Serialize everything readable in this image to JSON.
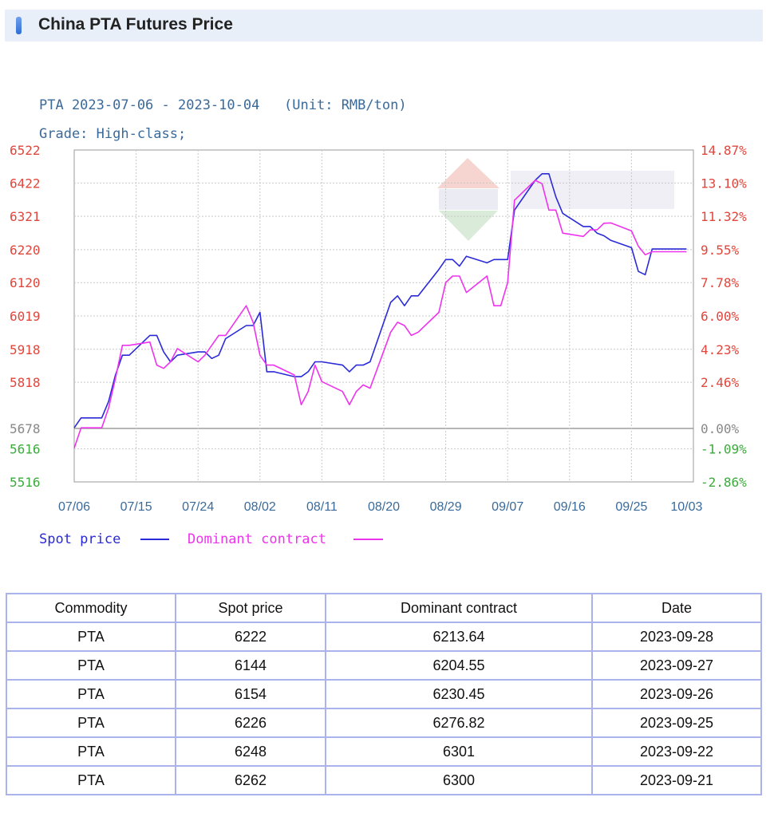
{
  "page": {
    "title": "China PTA Futures Price"
  },
  "colors": {
    "spot": "#2a2ad8",
    "dominant": "#ee33ee",
    "left_axis_upper": "#e0463c",
    "left_axis_lower": "#3cab3c",
    "right_axis_upper": "#e0463c",
    "right_axis_lower": "#3cab3c",
    "axis_text": "#3a6a9a"
  },
  "chart_data": {
    "type": "line",
    "title": "PTA 2023-07-06 - 2023-10-04   (Unit: RMB/ton)",
    "subtitle": "Grade: High-class;",
    "grid": true,
    "legend_position": "bottom-left",
    "x_ticks": [
      "07/06",
      "07/15",
      "07/24",
      "08/02",
      "08/11",
      "08/20",
      "08/29",
      "09/07",
      "09/16",
      "09/25",
      "10/03"
    ],
    "xlim": [
      "2023-07-06",
      "2023-10-04"
    ],
    "y_left_ticks": [
      "6522",
      "6422",
      "6321",
      "6220",
      "6120",
      "6019",
      "5918",
      "5818",
      "5678",
      "5616",
      "5516"
    ],
    "y_right_ticks": [
      "14.87%",
      "13.10%",
      "11.32%",
      "9.55%",
      "7.78%",
      "6.00%",
      "4.23%",
      "2.46%",
      "0.00%",
      "-1.09%",
      "-2.86%"
    ],
    "ylim": [
      5516,
      6522
    ],
    "baseline": 5678,
    "series": [
      {
        "name": "Spot price",
        "key": "spot",
        "x": [
          "2023-07-06",
          "2023-07-07",
          "2023-07-10",
          "2023-07-11",
          "2023-07-12",
          "2023-07-13",
          "2023-07-14",
          "2023-07-17",
          "2023-07-18",
          "2023-07-19",
          "2023-07-20",
          "2023-07-21",
          "2023-07-24",
          "2023-07-25",
          "2023-07-26",
          "2023-07-27",
          "2023-07-28",
          "2023-07-31",
          "2023-08-01",
          "2023-08-02",
          "2023-08-03",
          "2023-08-04",
          "2023-08-07",
          "2023-08-08",
          "2023-08-09",
          "2023-08-10",
          "2023-08-11",
          "2023-08-14",
          "2023-08-15",
          "2023-08-16",
          "2023-08-17",
          "2023-08-18",
          "2023-08-21",
          "2023-08-22",
          "2023-08-23",
          "2023-08-24",
          "2023-08-25",
          "2023-08-28",
          "2023-08-29",
          "2023-08-30",
          "2023-08-31",
          "2023-09-01",
          "2023-09-04",
          "2023-09-05",
          "2023-09-06",
          "2023-09-07",
          "2023-09-08",
          "2023-09-11",
          "2023-09-12",
          "2023-09-13",
          "2023-09-14",
          "2023-09-15",
          "2023-09-18",
          "2023-09-19",
          "2023-09-20",
          "2023-09-21",
          "2023-09-22",
          "2023-09-25",
          "2023-09-26",
          "2023-09-27",
          "2023-09-28",
          "2023-10-03"
        ],
        "values": [
          5680,
          5710,
          5710,
          5760,
          5840,
          5900,
          5900,
          5960,
          5960,
          5910,
          5880,
          5900,
          5910,
          5910,
          5890,
          5900,
          5950,
          5990,
          5990,
          6030,
          5850,
          5850,
          5835,
          5835,
          5850,
          5880,
          5880,
          5870,
          5850,
          5870,
          5870,
          5880,
          6060,
          6080,
          6050,
          6080,
          6080,
          6160,
          6190,
          6190,
          6170,
          6200,
          6180,
          6190,
          6190,
          6190,
          6340,
          6430,
          6450,
          6450,
          6380,
          6330,
          6290,
          6290,
          6270,
          6262,
          6248,
          6226,
          6154,
          6144,
          6222,
          6222
        ]
      },
      {
        "name": "Dominant contract",
        "key": "dominant",
        "x": [
          "2023-07-06",
          "2023-07-07",
          "2023-07-10",
          "2023-07-11",
          "2023-07-12",
          "2023-07-13",
          "2023-07-14",
          "2023-07-17",
          "2023-07-18",
          "2023-07-19",
          "2023-07-20",
          "2023-07-21",
          "2023-07-24",
          "2023-07-25",
          "2023-07-26",
          "2023-07-27",
          "2023-07-28",
          "2023-07-31",
          "2023-08-01",
          "2023-08-02",
          "2023-08-03",
          "2023-08-04",
          "2023-08-07",
          "2023-08-08",
          "2023-08-09",
          "2023-08-10",
          "2023-08-11",
          "2023-08-14",
          "2023-08-15",
          "2023-08-16",
          "2023-08-17",
          "2023-08-18",
          "2023-08-21",
          "2023-08-22",
          "2023-08-23",
          "2023-08-24",
          "2023-08-25",
          "2023-08-28",
          "2023-08-29",
          "2023-08-30",
          "2023-08-31",
          "2023-09-01",
          "2023-09-04",
          "2023-09-05",
          "2023-09-06",
          "2023-09-07",
          "2023-09-08",
          "2023-09-11",
          "2023-09-12",
          "2023-09-13",
          "2023-09-14",
          "2023-09-15",
          "2023-09-18",
          "2023-09-19",
          "2023-09-20",
          "2023-09-21",
          "2023-09-22",
          "2023-09-25",
          "2023-09-26",
          "2023-09-27",
          "2023-09-28",
          "2023-10-03"
        ],
        "values": [
          5618,
          5680,
          5680,
          5740,
          5830,
          5930,
          5930,
          5940,
          5870,
          5860,
          5880,
          5920,
          5880,
          5900,
          5930,
          5960,
          5960,
          6050,
          6000,
          5900,
          5870,
          5870,
          5840,
          5750,
          5790,
          5870,
          5820,
          5790,
          5750,
          5790,
          5810,
          5800,
          5970,
          6000,
          5990,
          5960,
          5970,
          6030,
          6120,
          6140,
          6140,
          6090,
          6140,
          6050,
          6050,
          6120,
          6370,
          6430,
          6420,
          6340,
          6340,
          6270,
          6260,
          6280,
          6280,
          6300,
          6301,
          6276.82,
          6230.45,
          6204.55,
          6213.64,
          6213.64
        ]
      }
    ]
  },
  "table": {
    "headers": [
      "Commodity",
      "Spot price",
      "Dominant contract",
      "Date"
    ],
    "rows": [
      [
        "PTA",
        "6222",
        "6213.64",
        "2023-09-28"
      ],
      [
        "PTA",
        "6144",
        "6204.55",
        "2023-09-27"
      ],
      [
        "PTA",
        "6154",
        "6230.45",
        "2023-09-26"
      ],
      [
        "PTA",
        "6226",
        "6276.82",
        "2023-09-25"
      ],
      [
        "PTA",
        "6248",
        "6301",
        "2023-09-22"
      ],
      [
        "PTA",
        "6262",
        "6300",
        "2023-09-21"
      ]
    ]
  }
}
